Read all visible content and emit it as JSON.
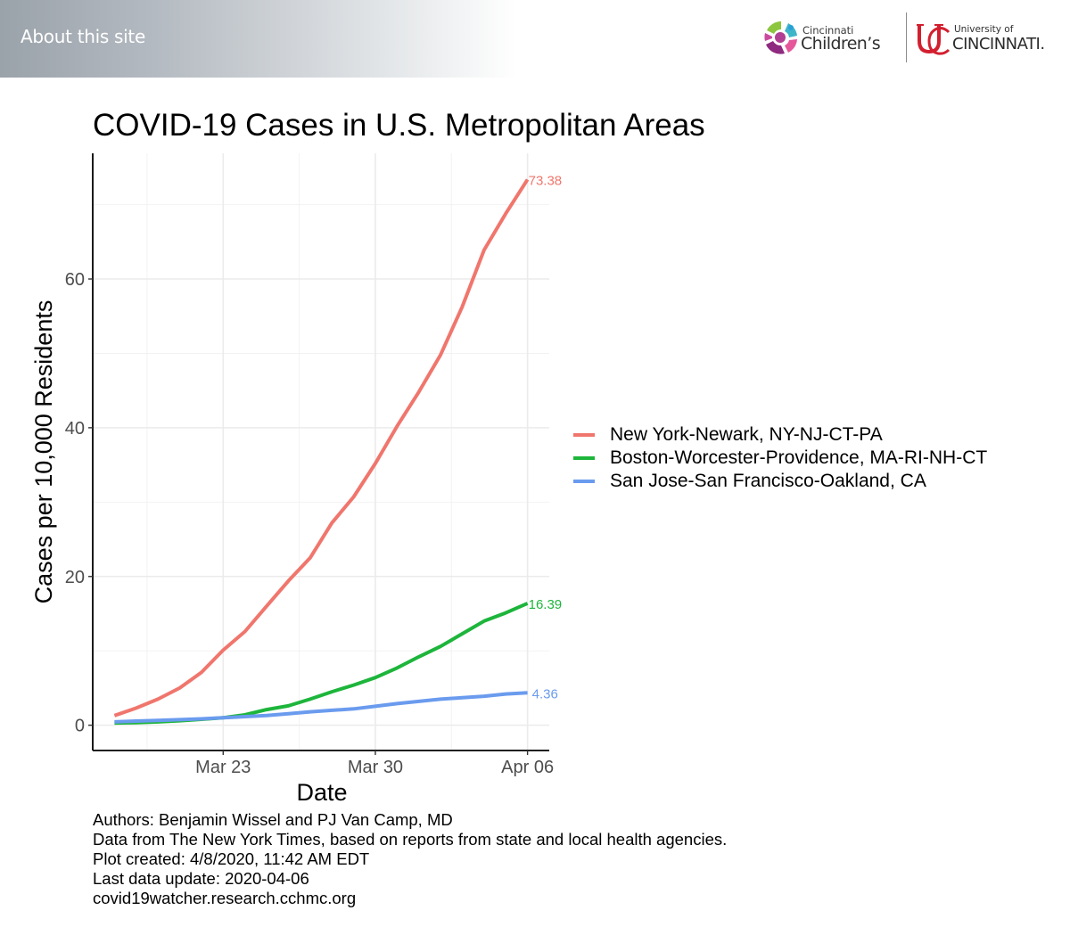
{
  "header": {
    "about_label": "About this site",
    "logos": {
      "cincinnati_childrens": {
        "line1": "Cincinnati",
        "line2": "Children’s",
        "mark": "®"
      },
      "university_of_cincinnati": {
        "line1": "University of",
        "line2": "CINCINNATI."
      }
    }
  },
  "chart_data": {
    "type": "line",
    "title": "COVID-19 Cases in U.S. Metropolitan Areas",
    "xlabel": "Date",
    "ylabel": "Cases per 10,000 Residents",
    "x": [
      "2020-03-18",
      "2020-03-19",
      "2020-03-20",
      "2020-03-21",
      "2020-03-22",
      "2020-03-23",
      "2020-03-24",
      "2020-03-25",
      "2020-03-26",
      "2020-03-27",
      "2020-03-28",
      "2020-03-29",
      "2020-03-30",
      "2020-03-31",
      "2020-04-01",
      "2020-04-02",
      "2020-04-03",
      "2020-04-04",
      "2020-04-05",
      "2020-04-06"
    ],
    "x_ticks": [
      {
        "date": "2020-03-23",
        "label": "Mar 23"
      },
      {
        "date": "2020-03-30",
        "label": "Mar 30"
      },
      {
        "date": "2020-04-06",
        "label": "Apr 06"
      }
    ],
    "x_minor_gridlines": [
      "2020-03-19T12:00",
      "2020-03-26T12:00",
      "2020-04-02T12:00"
    ],
    "xlim": [
      "2020-03-17T00:00",
      "2020-04-07T00:00"
    ],
    "y_ticks": [
      0,
      20,
      40,
      60
    ],
    "y_minor_gridlines": [
      10,
      30,
      50,
      70
    ],
    "ylim": [
      -3.4,
      76.9
    ],
    "grid": true,
    "legend_position": "right",
    "series": [
      {
        "name": "New York-Newark, NY-NJ-CT-PA",
        "color": "#F0766D",
        "end_label": "73.38",
        "values": [
          1.3,
          2.3,
          3.5,
          5.0,
          7.1,
          10.1,
          12.6,
          16.0,
          19.4,
          22.5,
          27.2,
          30.7,
          35.2,
          40.2,
          44.8,
          49.8,
          56.3,
          63.9,
          68.8,
          73.38
        ]
      },
      {
        "name": "Boston-Worcester-Providence, MA-RI-NH-CT",
        "color": "#1DB53B",
        "end_label": "16.39",
        "values": [
          0.3,
          0.35,
          0.45,
          0.6,
          0.8,
          1.0,
          1.4,
          2.1,
          2.6,
          3.5,
          4.5,
          5.4,
          6.4,
          7.7,
          9.2,
          10.6,
          12.3,
          14.0,
          15.1,
          16.39
        ]
      },
      {
        "name": "San Jose-San Francisco-Oakland, CA",
        "color": "#6A9BEE",
        "end_label": "4.36",
        "values": [
          0.45,
          0.55,
          0.65,
          0.75,
          0.85,
          1.0,
          1.15,
          1.3,
          1.55,
          1.8,
          2.0,
          2.2,
          2.55,
          2.9,
          3.2,
          3.5,
          3.7,
          3.9,
          4.2,
          4.36
        ]
      }
    ]
  },
  "footer": {
    "lines": [
      "Authors: Benjamin Wissel and PJ Van Camp, MD",
      "Data from The New York Times, based on reports from state and local health agencies.",
      "Plot created: 4/8/2020, 11:42 AM EDT",
      "Last data update: 2020-04-06",
      "covid19watcher.research.cchmc.org"
    ]
  }
}
